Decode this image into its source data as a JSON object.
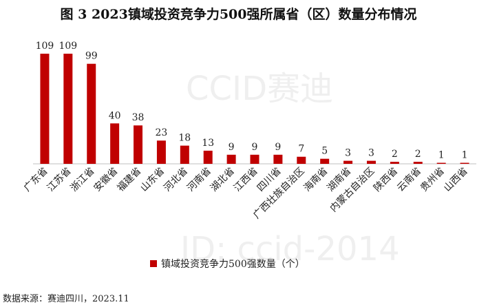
{
  "title": "图 3   2023镇域投资竞争力500强所属省（区）数量分布情况",
  "source": "数据来源：赛迪四川，2023.11",
  "watermarks": [
    "CCID赛迪",
    "ID: ccid-2014"
  ],
  "colors": {
    "bar": "#c00000",
    "axis": "#bfbfbf"
  },
  "chart_data": {
    "type": "bar",
    "categories": [
      "广东省",
      "江苏省",
      "浙江省",
      "安徽省",
      "福建省",
      "山东省",
      "河北省",
      "河南省",
      "湖北省",
      "江西省",
      "四川省",
      "广西壮族自治区",
      "海南省",
      "湖南省",
      "内蒙古自治区",
      "陕西省",
      "云南省",
      "贵州省",
      "山西省"
    ],
    "series": [
      {
        "name": "镇域投资竞争力500强数量（个）",
        "values": [
          109,
          109,
          99,
          40,
          38,
          23,
          18,
          13,
          9,
          9,
          9,
          7,
          5,
          3,
          3,
          2,
          2,
          1,
          1
        ]
      }
    ],
    "title": "图 3   2023镇域投资竞争力500强所属省（区）数量分布情况",
    "ylim": [
      0,
      109
    ],
    "grid": false,
    "legend": "bottom",
    "data_labels": true
  }
}
